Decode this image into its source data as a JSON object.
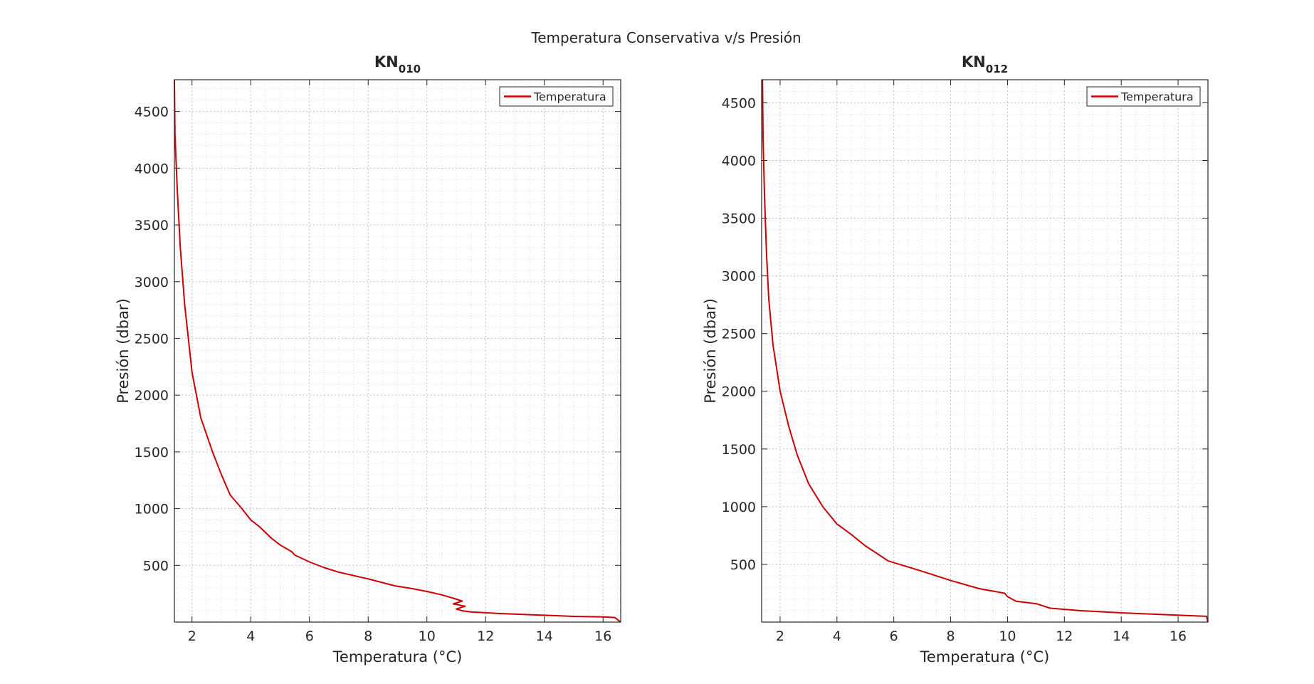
{
  "figure": {
    "title": "Temperatura Conservativa v/s Presión"
  },
  "chart_data": [
    {
      "type": "line",
      "title": "KN",
      "title_sub": "010",
      "xlabel": "Temperatura (°C)",
      "ylabel": "Presión (dbar)",
      "xlim": [
        1.4,
        16.6
      ],
      "ylim": [
        0,
        4780
      ],
      "xticks": [
        2,
        4,
        6,
        8,
        10,
        12,
        14,
        16
      ],
      "yticks": [
        500,
        1000,
        1500,
        2000,
        2500,
        3000,
        3500,
        4000,
        4500
      ],
      "grid": true,
      "minor_grid": true,
      "legend": "top-right",
      "series": [
        {
          "name": "Temperatura",
          "color": "#cc0000",
          "x": [
            1.4,
            1.42,
            1.5,
            1.6,
            1.75,
            2.0,
            2.3,
            2.7,
            3.0,
            3.3,
            3.7,
            4.0,
            4.3,
            4.7,
            5.0,
            5.4,
            5.5,
            6.0,
            6.5,
            7.0,
            8.0,
            8.9,
            9.5,
            10.0,
            10.5,
            10.9,
            11.2,
            10.9,
            11.3,
            11.0,
            11.2,
            11.5,
            12.5,
            14.0,
            15.0,
            16.0,
            16.4,
            16.6
          ],
          "y": [
            4780,
            4300,
            3800,
            3300,
            2800,
            2200,
            1800,
            1500,
            1300,
            1120,
            1000,
            900,
            840,
            740,
            680,
            620,
            590,
            530,
            480,
            440,
            380,
            320,
            295,
            270,
            240,
            210,
            185,
            160,
            140,
            115,
            100,
            90,
            75,
            60,
            50,
            45,
            40,
            0
          ]
        }
      ]
    },
    {
      "type": "line",
      "title": "KN",
      "title_sub": "012",
      "xlabel": "Temperatura (°C)",
      "ylabel": "Presión (dbar)",
      "xlim": [
        1.35,
        17.05
      ],
      "ylim": [
        0,
        4700
      ],
      "xticks": [
        2,
        4,
        6,
        8,
        10,
        12,
        14,
        16
      ],
      "yticks": [
        500,
        1000,
        1500,
        2000,
        2500,
        3000,
        3500,
        4000,
        4500
      ],
      "grid": true,
      "minor_grid": true,
      "legend": "top-right",
      "series": [
        {
          "name": "Temperatura",
          "color": "#cc0000",
          "x": [
            1.38,
            1.4,
            1.45,
            1.52,
            1.6,
            1.75,
            2.0,
            2.3,
            2.6,
            3.0,
            3.5,
            4.0,
            4.5,
            5.0,
            5.5,
            5.8,
            6.2,
            7.0,
            8.0,
            9.0,
            9.9,
            10.0,
            10.3,
            11.0,
            11.5,
            12.5,
            14.0,
            15.5,
            16.5,
            17.0,
            17.05
          ],
          "y": [
            4700,
            4200,
            3700,
            3200,
            2800,
            2400,
            2000,
            1700,
            1450,
            1200,
            1000,
            850,
            760,
            660,
            580,
            530,
            500,
            440,
            360,
            290,
            250,
            220,
            180,
            160,
            120,
            100,
            80,
            65,
            55,
            50,
            0
          ]
        }
      ]
    }
  ]
}
